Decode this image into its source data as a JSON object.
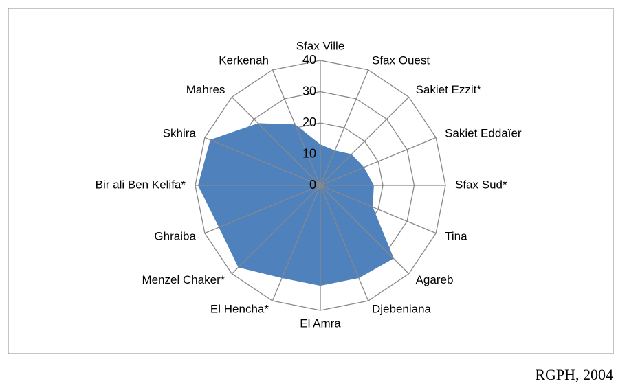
{
  "chart_data": {
    "type": "radar",
    "categories": [
      "Sfax Ville",
      "Sfax Ouest",
      "Sakiet Ezzit*",
      "Sakiet Eddaïer",
      "Sfax Sud*",
      "Tina",
      "Agareb",
      "Djebeniana",
      "El Amra",
      "El Hencha*",
      "Menzel Chaker*",
      "Ghraiba",
      "Bir ali Ben Kelifa*",
      "Skhira",
      "Mahres",
      "Kerkenah"
    ],
    "values": [
      13,
      12,
      14,
      15,
      17,
      18,
      33,
      32,
      32,
      32,
      37,
      35,
      39,
      38,
      28,
      21
    ],
    "color": "#4f81bd",
    "ylim": [
      0,
      40
    ],
    "yticks": [
      0,
      10,
      20,
      30,
      40
    ],
    "grid": true,
    "source": "RGPH, 2004"
  }
}
